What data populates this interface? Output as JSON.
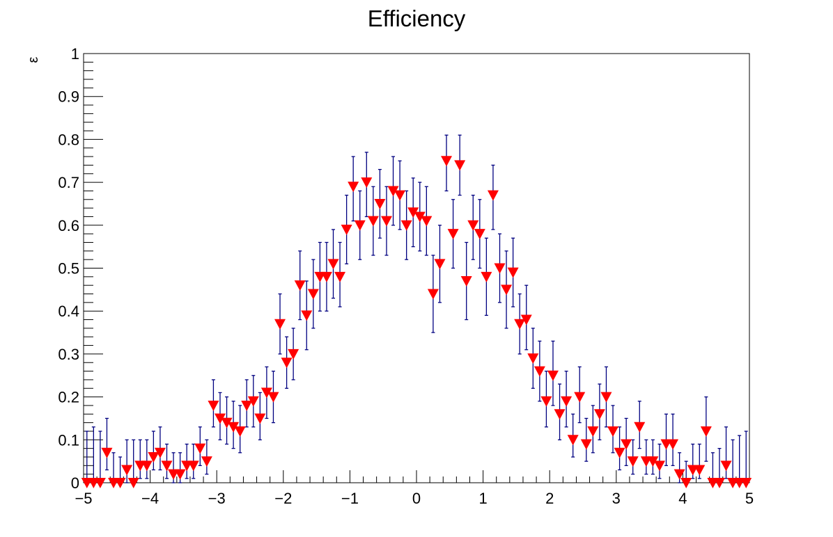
{
  "chart_data": {
    "type": "scatter",
    "title": "Efficiency",
    "ylabel": "ε",
    "xlabel": "",
    "xlim": [
      -5,
      5
    ],
    "ylim": [
      0,
      1
    ],
    "x_ticks": [
      "−5",
      "−4",
      "−3",
      "−2",
      "−1",
      "0",
      "1",
      "2",
      "3",
      "4",
      "5"
    ],
    "y_ticks": [
      "0",
      "0.1",
      "0.2",
      "0.3",
      "0.4",
      "0.5",
      "0.6",
      "0.7",
      "0.8",
      "0.9",
      "1"
    ],
    "grid": false,
    "legend": "none",
    "marker": "downward-triangle",
    "colors": {
      "marker": "#ff0000",
      "error_bar": "#000080",
      "axis": "#000000"
    },
    "series": [
      {
        "x": [
          -4.95,
          -4.85,
          -4.75,
          -4.65,
          -4.55,
          -4.45,
          -4.35,
          -4.25,
          -4.15,
          -4.05,
          -3.95,
          -3.85,
          -3.75,
          -3.65,
          -3.55,
          -3.45,
          -3.35,
          -3.25,
          -3.15,
          -3.05,
          -2.95,
          -2.85,
          -2.75,
          -2.65,
          -2.55,
          -2.45,
          -2.35,
          -2.25,
          -2.15,
          -2.05,
          -1.95,
          -1.85,
          -1.75,
          -1.65,
          -1.55,
          -1.45,
          -1.35,
          -1.25,
          -1.15,
          -1.05,
          -0.95,
          -0.85,
          -0.75,
          -0.65,
          -0.55,
          -0.45,
          -0.35,
          -0.25,
          -0.15,
          -0.05,
          0.05,
          0.15,
          0.25,
          0.35,
          0.45,
          0.55,
          0.65,
          0.75,
          0.85,
          0.95,
          1.05,
          1.15,
          1.25,
          1.35,
          1.45,
          1.55,
          1.65,
          1.75,
          1.85,
          1.95,
          2.05,
          2.15,
          2.25,
          2.35,
          2.45,
          2.55,
          2.65,
          2.75,
          2.85,
          2.95,
          3.05,
          3.15,
          3.25,
          3.35,
          3.45,
          3.55,
          3.65,
          3.75,
          3.85,
          3.95,
          4.05,
          4.15,
          4.25,
          4.35,
          4.45,
          4.55,
          4.65,
          4.75,
          4.85,
          4.95
        ],
        "y": [
          0,
          0,
          0,
          0.07,
          0,
          0,
          0.03,
          0,
          0.04,
          0.04,
          0.06,
          0.07,
          0.04,
          0.02,
          0.02,
          0.04,
          0.04,
          0.08,
          0.05,
          0.18,
          0.15,
          0.14,
          0.13,
          0.12,
          0.18,
          0.19,
          0.15,
          0.21,
          0.2,
          0.37,
          0.28,
          0.3,
          0.46,
          0.39,
          0.44,
          0.48,
          0.48,
          0.51,
          0.48,
          0.59,
          0.69,
          0.6,
          0.7,
          0.61,
          0.65,
          0.61,
          0.68,
          0.67,
          0.6,
          0.63,
          0.62,
          0.61,
          0.44,
          0.51,
          0.75,
          0.58,
          0.74,
          0.47,
          0.6,
          0.58,
          0.48,
          0.67,
          0.5,
          0.45,
          0.49,
          0.37,
          0.38,
          0.29,
          0.26,
          0.19,
          0.25,
          0.16,
          0.19,
          0.1,
          0.2,
          0.09,
          0.12,
          0.16,
          0.2,
          0.12,
          0.07,
          0.09,
          0.05,
          0.13,
          0.05,
          0.05,
          0.04,
          0.09,
          0.09,
          0.02,
          0,
          0.03,
          0.03,
          0.12,
          0,
          0,
          0.04,
          0,
          0,
          0
        ],
        "err_low": [
          0,
          0,
          0,
          0.04,
          0,
          0,
          0.03,
          0,
          0.03,
          0.03,
          0.03,
          0.04,
          0.03,
          0.02,
          0.02,
          0.03,
          0.03,
          0.04,
          0.03,
          0.05,
          0.05,
          0.05,
          0.05,
          0.05,
          0.05,
          0.06,
          0.05,
          0.06,
          0.06,
          0.07,
          0.06,
          0.06,
          0.08,
          0.08,
          0.08,
          0.08,
          0.08,
          0.08,
          0.07,
          0.08,
          0.08,
          0.08,
          0.08,
          0.08,
          0.08,
          0.08,
          0.08,
          0.08,
          0.08,
          0.08,
          0.08,
          0.08,
          0.09,
          0.09,
          0.07,
          0.08,
          0.07,
          0.09,
          0.08,
          0.08,
          0.09,
          0.08,
          0.08,
          0.09,
          0.08,
          0.07,
          0.07,
          0.07,
          0.07,
          0.06,
          0.07,
          0.06,
          0.06,
          0.04,
          0.06,
          0.04,
          0.05,
          0.06,
          0.07,
          0.05,
          0.04,
          0.05,
          0.03,
          0.05,
          0.03,
          0.03,
          0.03,
          0.05,
          0.05,
          0.02,
          0,
          0.02,
          0.02,
          0.07,
          0,
          0,
          0.03,
          0,
          0,
          0
        ],
        "err_high": [
          0.12,
          0.13,
          0.12,
          0.08,
          0.07,
          0.06,
          0.07,
          0.1,
          0.06,
          0.06,
          0.06,
          0.06,
          0.05,
          0.05,
          0.05,
          0.05,
          0.05,
          0.05,
          0.05,
          0.06,
          0.06,
          0.06,
          0.06,
          0.06,
          0.06,
          0.06,
          0.06,
          0.06,
          0.06,
          0.07,
          0.06,
          0.06,
          0.08,
          0.08,
          0.08,
          0.08,
          0.08,
          0.08,
          0.08,
          0.08,
          0.07,
          0.08,
          0.07,
          0.08,
          0.08,
          0.08,
          0.08,
          0.08,
          0.08,
          0.08,
          0.08,
          0.08,
          0.09,
          0.09,
          0.06,
          0.08,
          0.07,
          0.09,
          0.07,
          0.08,
          0.09,
          0.07,
          0.08,
          0.09,
          0.08,
          0.07,
          0.08,
          0.07,
          0.07,
          0.07,
          0.08,
          0.07,
          0.07,
          0.06,
          0.07,
          0.06,
          0.06,
          0.07,
          0.07,
          0.06,
          0.06,
          0.06,
          0.05,
          0.06,
          0.05,
          0.05,
          0.05,
          0.07,
          0.07,
          0.05,
          0.05,
          0.06,
          0.06,
          0.08,
          0.07,
          0.08,
          0.09,
          0.1,
          0.11,
          0.12
        ]
      }
    ]
  }
}
